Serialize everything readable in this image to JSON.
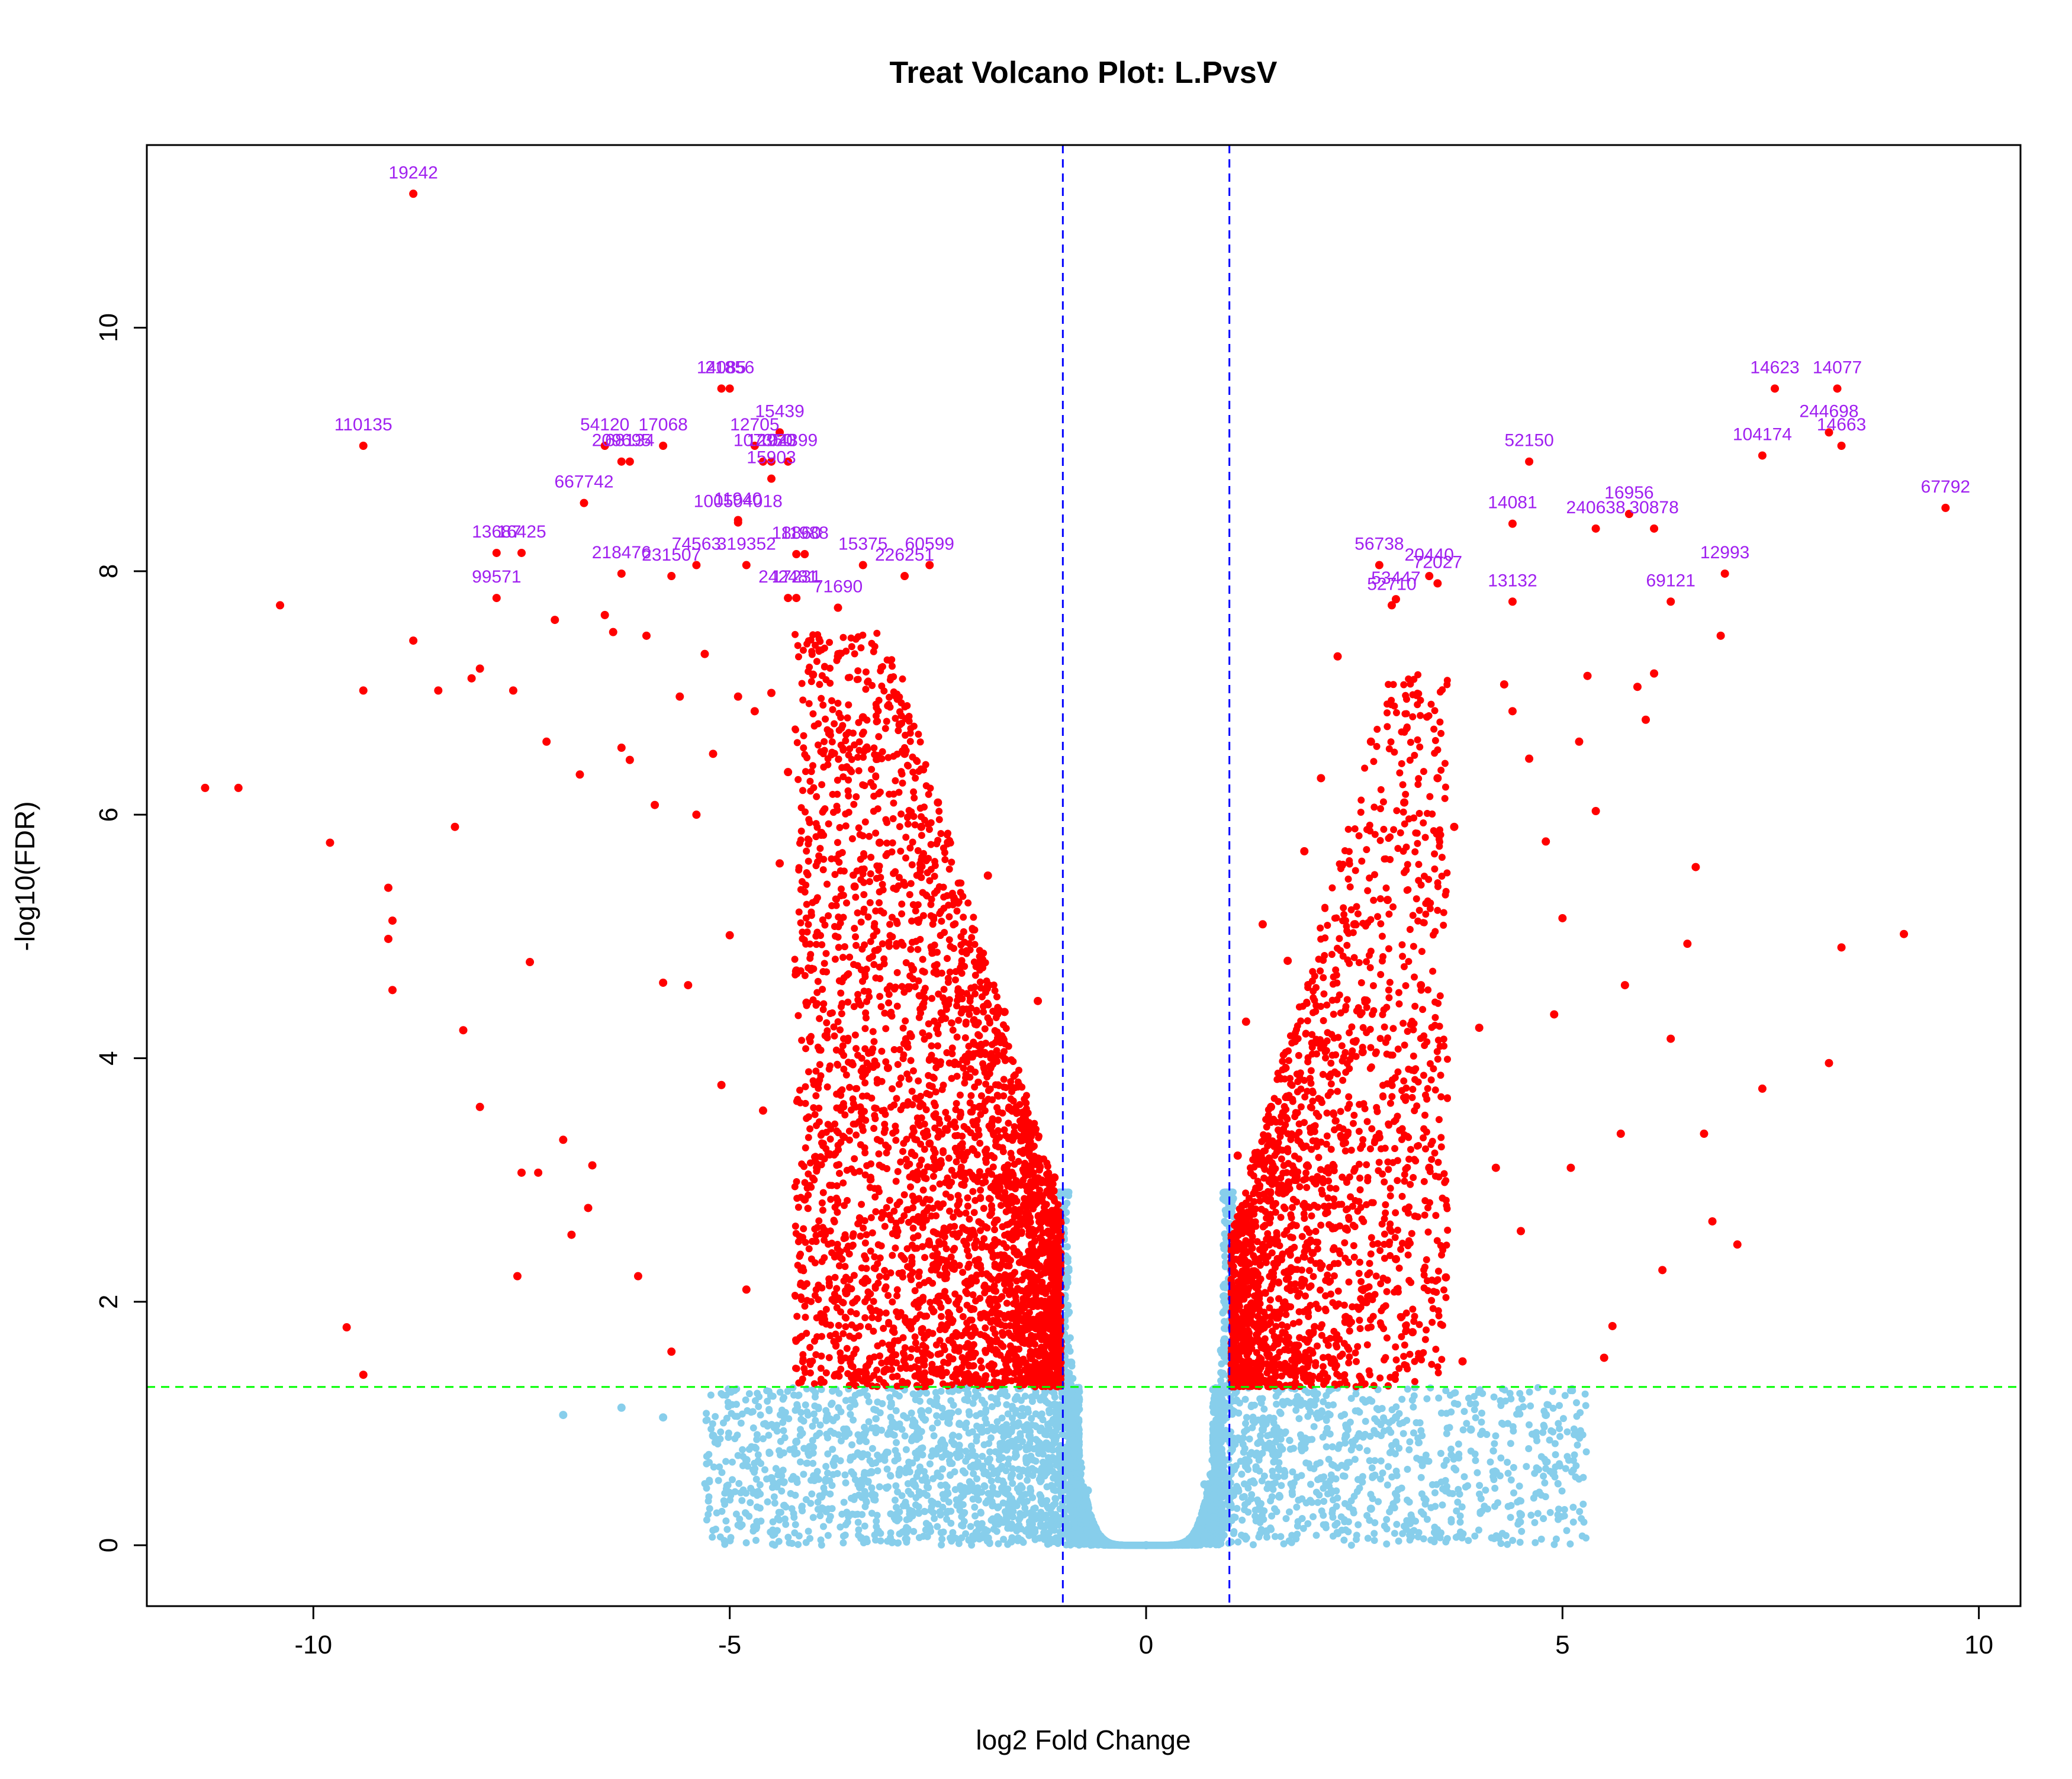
{
  "chart_data": {
    "type": "scatter",
    "title": "Treat Volcano Plot: L.PvsV",
    "xlabel": "log2 Fold Change",
    "ylabel": "-log10(FDR)",
    "xlim": [
      -12,
      10.5
    ],
    "ylim": [
      -0.5,
      11.5
    ],
    "xticks": [
      -10,
      -5,
      0,
      5,
      10
    ],
    "yticks": [
      0,
      2,
      4,
      6,
      8,
      10
    ],
    "grid": false,
    "legend": "none",
    "thresholds": {
      "log2fc": [
        -1,
        1
      ],
      "fdr_neglog10": 1.3
    },
    "colors": {
      "significant": "#ff0000",
      "not_significant": "#87ceeb",
      "label": "#a020f0",
      "fc_line": "#0000ff",
      "fdr_line": "#00ff00"
    },
    "series": [
      {
        "name": "significant",
        "points": [
          [
            -11.3,
            6.22
          ],
          [
            -10.9,
            6.22
          ],
          [
            -10.4,
            7.72
          ],
          [
            -9.8,
            5.77
          ],
          [
            -9.6,
            1.79
          ],
          [
            -9.4,
            7.02
          ],
          [
            -9.4,
            1.4
          ],
          [
            -9.1,
            5.4
          ],
          [
            -9.1,
            4.98
          ],
          [
            -9.05,
            5.13
          ],
          [
            -9.05,
            4.56
          ],
          [
            -8.8,
            7.43
          ],
          [
            -8.5,
            7.02
          ],
          [
            -8.3,
            5.9
          ],
          [
            -8.2,
            4.23
          ],
          [
            -8.1,
            7.12
          ],
          [
            -8.0,
            7.2
          ],
          [
            -8.0,
            3.6
          ],
          [
            -7.6,
            7.02
          ],
          [
            -7.55,
            2.21
          ],
          [
            -7.5,
            3.06
          ],
          [
            -7.4,
            4.79
          ],
          [
            -7.3,
            3.06
          ],
          [
            -7.2,
            6.6
          ],
          [
            -7.1,
            7.6
          ],
          [
            -7.0,
            3.33
          ],
          [
            -6.9,
            2.55
          ],
          [
            -6.8,
            6.33
          ],
          [
            -6.7,
            2.77
          ],
          [
            -6.65,
            3.12
          ],
          [
            -6.5,
            7.64
          ],
          [
            -6.4,
            7.5
          ],
          [
            -6.3,
            6.55
          ],
          [
            -6.2,
            6.45
          ],
          [
            -6.1,
            2.21
          ],
          [
            -6.0,
            7.47
          ],
          [
            -5.9,
            6.08
          ],
          [
            -5.8,
            4.62
          ],
          [
            -5.7,
            1.59
          ],
          [
            -5.6,
            6.97
          ],
          [
            -5.5,
            4.6
          ],
          [
            -5.4,
            6.0
          ],
          [
            -5.3,
            7.32
          ],
          [
            -5.2,
            6.5
          ],
          [
            -5.1,
            3.78
          ],
          [
            -5.0,
            5.01
          ],
          [
            -4.9,
            6.97
          ],
          [
            -4.8,
            2.1
          ],
          [
            -4.7,
            6.85
          ],
          [
            -4.6,
            3.57
          ],
          [
            -4.5,
            7.0
          ],
          [
            -4.4,
            5.6
          ],
          [
            -4.3,
            6.35
          ],
          [
            -4.2,
            4.72
          ],
          [
            -4.1,
            2.84
          ],
          [
            -4.0,
            7.15
          ],
          [
            -3.9,
            5.85
          ],
          [
            -3.8,
            3.21
          ],
          [
            -3.7,
            7.3
          ],
          [
            -3.6,
            2.07
          ],
          [
            -3.5,
            5.41
          ],
          [
            -3.4,
            6.8
          ],
          [
            -3.3,
            4.05
          ],
          [
            -3.2,
            5.77
          ],
          [
            -3.1,
            3.92
          ],
          [
            -3.0,
            2.6
          ],
          [
            -2.9,
            6.5
          ],
          [
            -2.8,
            4.73
          ],
          [
            -2.7,
            5.9
          ],
          [
            -2.6,
            3.3
          ],
          [
            -2.5,
            6.1
          ],
          [
            -2.4,
            2.23
          ],
          [
            -2.3,
            5.3
          ],
          [
            -2.2,
            4.4
          ],
          [
            -2.1,
            1.72
          ],
          [
            -2.0,
            3.6
          ],
          [
            -1.9,
            5.5
          ],
          [
            -1.8,
            2.91
          ],
          [
            -1.7,
            4.38
          ],
          [
            -1.6,
            1.9
          ],
          [
            -1.5,
            3.35
          ],
          [
            -1.4,
            2.55
          ],
          [
            -1.3,
            4.47
          ],
          [
            -1.2,
            2.1
          ],
          [
            -1.15,
            1.48
          ],
          [
            -1.1,
            3.02
          ],
          [
            -1.05,
            1.78
          ],
          [
            1.05,
            1.65
          ],
          [
            1.1,
            3.2
          ],
          [
            1.15,
            2.7
          ],
          [
            1.2,
            4.3
          ],
          [
            1.3,
            2.25
          ],
          [
            1.4,
            5.1
          ],
          [
            1.5,
            3.6
          ],
          [
            1.6,
            1.9
          ],
          [
            1.7,
            4.8
          ],
          [
            1.8,
            3.0
          ],
          [
            1.9,
            5.7
          ],
          [
            2.0,
            2.4
          ],
          [
            2.1,
            6.3
          ],
          [
            2.2,
            3.85
          ],
          [
            2.3,
            7.3
          ],
          [
            2.4,
            2.6
          ],
          [
            2.5,
            5.1
          ],
          [
            2.6,
            4.05
          ],
          [
            2.7,
            6.6
          ],
          [
            2.8,
            3.35
          ],
          [
            2.9,
            5.3
          ],
          [
            3.0,
            2.35
          ],
          [
            3.1,
            6.1
          ],
          [
            3.2,
            1.75
          ],
          [
            3.3,
            4.6
          ],
          [
            3.4,
            3.1
          ],
          [
            3.5,
            6.3
          ],
          [
            3.6,
            2.2
          ],
          [
            3.7,
            5.9
          ],
          [
            3.8,
            1.51
          ],
          [
            4.0,
            4.25
          ],
          [
            4.2,
            3.1
          ],
          [
            4.3,
            7.07
          ],
          [
            4.4,
            6.85
          ],
          [
            4.5,
            2.58
          ],
          [
            4.6,
            6.46
          ],
          [
            4.8,
            5.78
          ],
          [
            4.9,
            4.36
          ],
          [
            5.0,
            5.15
          ],
          [
            5.1,
            3.1
          ],
          [
            5.2,
            6.6
          ],
          [
            5.3,
            7.14
          ],
          [
            5.4,
            6.03
          ],
          [
            5.5,
            1.54
          ],
          [
            5.6,
            1.8
          ],
          [
            5.7,
            3.38
          ],
          [
            5.75,
            4.6
          ],
          [
            5.9,
            7.05
          ],
          [
            6.0,
            6.78
          ],
          [
            6.1,
            7.16
          ],
          [
            6.2,
            2.26
          ],
          [
            6.3,
            4.16
          ],
          [
            6.5,
            4.94
          ],
          [
            6.6,
            5.57
          ],
          [
            6.7,
            3.38
          ],
          [
            6.8,
            2.66
          ],
          [
            6.9,
            7.47
          ],
          [
            7.1,
            2.47
          ],
          [
            7.4,
            3.75
          ],
          [
            8.2,
            3.96
          ],
          [
            8.35,
            4.91
          ],
          [
            9.1,
            5.02
          ]
        ]
      },
      {
        "name": "not significant",
        "points": [
          [
            -7.0,
            1.07
          ],
          [
            -6.3,
            1.13
          ],
          [
            -5.8,
            1.05
          ],
          [
            -5.2,
            0.9
          ],
          [
            -4.8,
            0.7
          ],
          [
            -4.5,
            0.55
          ],
          [
            -4.2,
            0.85
          ],
          [
            -3.9,
            0.4
          ],
          [
            -3.6,
            0.95
          ],
          [
            -3.3,
            0.6
          ],
          [
            -3.0,
            0.25
          ],
          [
            -2.7,
            1.1
          ],
          [
            -2.4,
            0.75
          ],
          [
            -2.1,
            0.5
          ],
          [
            -1.8,
            1.2
          ],
          [
            -1.6,
            0.35
          ],
          [
            -1.4,
            0.9
          ],
          [
            -1.2,
            0.6
          ],
          [
            -1.0,
            0.3
          ],
          [
            -0.9,
            1.5
          ],
          [
            -0.85,
            0.8
          ],
          [
            -0.8,
            0.12
          ],
          [
            -0.7,
            0.45
          ],
          [
            -0.6,
            0.05
          ],
          [
            -0.5,
            0.02
          ],
          [
            0.0,
            0.0
          ],
          [
            0.5,
            0.02
          ],
          [
            0.6,
            0.06
          ],
          [
            0.7,
            0.5
          ],
          [
            0.8,
            0.15
          ],
          [
            0.85,
            0.85
          ],
          [
            0.9,
            1.6
          ],
          [
            1.0,
            0.35
          ],
          [
            1.2,
            0.65
          ],
          [
            1.4,
            0.95
          ],
          [
            1.6,
            0.4
          ],
          [
            1.8,
            1.18
          ],
          [
            2.1,
            0.55
          ],
          [
            2.4,
            0.9
          ],
          [
            2.7,
            0.3
          ],
          [
            3.0,
            1.05
          ],
          [
            3.3,
            0.7
          ],
          [
            3.6,
            0.45
          ],
          [
            3.9,
            0.95
          ],
          [
            4.2,
            0.6
          ],
          [
            4.5,
            0.25
          ],
          [
            4.8,
            1.07
          ]
        ]
      }
    ],
    "labeled_genes": [
      {
        "x": -8.8,
        "y": 11.1,
        "label": "19242"
      },
      {
        "x": -9.4,
        "y": 9.03,
        "label": "110135"
      },
      {
        "x": -5.0,
        "y": 9.5,
        "label": "21856"
      },
      {
        "x": -5.1,
        "y": 9.5,
        "label": "14085"
      },
      {
        "x": -4.4,
        "y": 9.14,
        "label": "15439"
      },
      {
        "x": -4.7,
        "y": 9.03,
        "label": "12705"
      },
      {
        "x": -4.3,
        "y": 8.9,
        "label": "104399"
      },
      {
        "x": -4.5,
        "y": 8.9,
        "label": "12920"
      },
      {
        "x": -4.6,
        "y": 8.9,
        "label": "107350"
      },
      {
        "x": -4.5,
        "y": 8.76,
        "label": "15903"
      },
      {
        "x": -6.5,
        "y": 9.03,
        "label": "54120"
      },
      {
        "x": -6.3,
        "y": 8.9,
        "label": "209695"
      },
      {
        "x": -5.8,
        "y": 9.03,
        "label": "17068"
      },
      {
        "x": -6.2,
        "y": 8.9,
        "label": "68134"
      },
      {
        "x": -6.75,
        "y": 8.56,
        "label": "667742"
      },
      {
        "x": -4.9,
        "y": 8.42,
        "label": "11940"
      },
      {
        "x": -4.9,
        "y": 8.4,
        "label": "100504018"
      },
      {
        "x": -4.1,
        "y": 8.14,
        "label": "11988"
      },
      {
        "x": -4.2,
        "y": 8.14,
        "label": "18860"
      },
      {
        "x": -3.4,
        "y": 8.05,
        "label": "15375"
      },
      {
        "x": -2.6,
        "y": 8.05,
        "label": "60599"
      },
      {
        "x": -2.9,
        "y": 7.96,
        "label": "226251"
      },
      {
        "x": -7.5,
        "y": 8.15,
        "label": "16425"
      },
      {
        "x": -7.8,
        "y": 8.15,
        "label": "13687"
      },
      {
        "x": -7.8,
        "y": 7.78,
        "label": "99571"
      },
      {
        "x": -6.3,
        "y": 7.98,
        "label": "218476"
      },
      {
        "x": -5.4,
        "y": 8.05,
        "label": "74563"
      },
      {
        "x": -5.7,
        "y": 7.96,
        "label": "231507"
      },
      {
        "x": -4.8,
        "y": 8.05,
        "label": "319352"
      },
      {
        "x": -4.3,
        "y": 7.78,
        "label": "242481"
      },
      {
        "x": -4.2,
        "y": 7.78,
        "label": "17231"
      },
      {
        "x": -3.7,
        "y": 7.7,
        "label": "71690"
      },
      {
        "x": 7.55,
        "y": 9.5,
        "label": "14623"
      },
      {
        "x": 8.3,
        "y": 9.5,
        "label": "14077"
      },
      {
        "x": 8.2,
        "y": 9.14,
        "label": "244698"
      },
      {
        "x": 8.35,
        "y": 9.03,
        "label": "14663"
      },
      {
        "x": 7.4,
        "y": 8.95,
        "label": "104174"
      },
      {
        "x": 4.6,
        "y": 8.9,
        "label": "52150"
      },
      {
        "x": 9.6,
        "y": 8.52,
        "label": "67792"
      },
      {
        "x": 4.4,
        "y": 8.39,
        "label": "14081"
      },
      {
        "x": 5.4,
        "y": 8.35,
        "label": "240638"
      },
      {
        "x": 5.8,
        "y": 8.47,
        "label": "16956"
      },
      {
        "x": 6.1,
        "y": 8.35,
        "label": "30878"
      },
      {
        "x": 2.8,
        "y": 8.05,
        "label": "56738"
      },
      {
        "x": 3.4,
        "y": 7.96,
        "label": "20440"
      },
      {
        "x": 3.5,
        "y": 7.9,
        "label": "72027"
      },
      {
        "x": 3.0,
        "y": 7.77,
        "label": "53447"
      },
      {
        "x": 2.95,
        "y": 7.72,
        "label": "52710"
      },
      {
        "x": 4.4,
        "y": 7.75,
        "label": "13132"
      },
      {
        "x": 6.95,
        "y": 7.98,
        "label": "12993"
      },
      {
        "x": 6.3,
        "y": 7.75,
        "label": "69121"
      }
    ]
  }
}
